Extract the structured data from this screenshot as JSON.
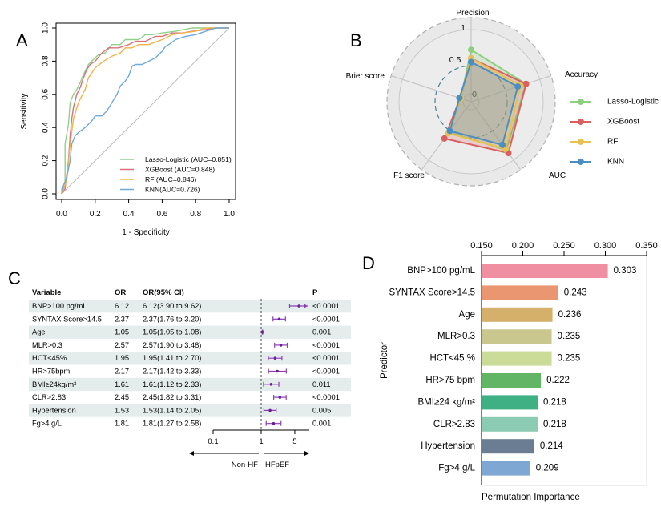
{
  "panel_labels": {
    "a": "A",
    "b": "B",
    "c": "C",
    "d": "D"
  },
  "chart_data": [
    {
      "panel": "A",
      "type": "line",
      "xlabel": "1 - Specificity",
      "ylabel": "Sensitivity",
      "xlim": [
        0,
        1
      ],
      "ylim": [
        0,
        1
      ],
      "xticks": [
        "0.0",
        "0.2",
        "0.4",
        "0.6",
        "0.8",
        "1.0"
      ],
      "yticks": [
        "0.0",
        "0.2",
        "0.4",
        "0.6",
        "0.8",
        "1.0"
      ],
      "legend_position": "bottom-right",
      "series": [
        {
          "name": "Lasso-Logistic (AUC=0.851)",
          "color": "#8fd18a",
          "x": [
            0,
            0,
            0.02,
            0.02,
            0.04,
            0.05,
            0.07,
            0.09,
            0.11,
            0.13,
            0.16,
            0.19,
            0.22,
            0.26,
            0.3,
            0.35,
            0.38,
            0.46,
            0.5,
            0.54,
            0.6,
            0.68,
            0.78,
            0.86,
            1.0
          ],
          "y": [
            0,
            0.03,
            0.05,
            0.3,
            0.42,
            0.55,
            0.6,
            0.63,
            0.67,
            0.72,
            0.78,
            0.81,
            0.84,
            0.85,
            0.9,
            0.9,
            0.93,
            0.93,
            0.96,
            0.96,
            0.97,
            0.98,
            1.0,
            1.0,
            1.0
          ]
        },
        {
          "name": "XGBoost (AUC=0.848)",
          "color": "#d9707a",
          "x": [
            0,
            0.02,
            0.04,
            0.05,
            0.06,
            0.07,
            0.09,
            0.11,
            0.13,
            0.15,
            0.17,
            0.2,
            0.24,
            0.28,
            0.34,
            0.4,
            0.44,
            0.5,
            0.56,
            0.6,
            0.66,
            0.72,
            0.78,
            0.86,
            0.92,
            1.0
          ],
          "y": [
            0,
            0.03,
            0.2,
            0.35,
            0.45,
            0.52,
            0.6,
            0.64,
            0.7,
            0.75,
            0.78,
            0.8,
            0.85,
            0.88,
            0.88,
            0.9,
            0.92,
            0.92,
            0.95,
            0.95,
            0.97,
            0.97,
            0.98,
            0.99,
            1.0,
            1.0
          ]
        },
        {
          "name": "RF (AUC=0.846)",
          "color": "#f0b44a",
          "x": [
            0,
            0.03,
            0.05,
            0.07,
            0.1,
            0.14,
            0.16,
            0.2,
            0.25,
            0.3,
            0.35,
            0.38,
            0.42,
            0.46,
            0.52,
            0.6,
            0.66,
            0.72,
            0.8,
            0.86,
            1.0
          ],
          "y": [
            0,
            0.08,
            0.3,
            0.45,
            0.55,
            0.63,
            0.7,
            0.76,
            0.8,
            0.83,
            0.85,
            0.88,
            0.88,
            0.9,
            0.9,
            0.93,
            0.96,
            0.97,
            0.98,
            1.0,
            1.0
          ]
        },
        {
          "name": "KNN(AUC=0.726)",
          "color": "#6fa9dd",
          "x": [
            0,
            0.01,
            0.03,
            0.05,
            0.06,
            0.08,
            0.1,
            0.14,
            0.18,
            0.2,
            0.24,
            0.27,
            0.3,
            0.33,
            0.35,
            0.38,
            0.4,
            0.42,
            0.44,
            0.48,
            0.52,
            0.56,
            0.58,
            0.6,
            0.62,
            0.64,
            0.68,
            0.74,
            0.8,
            0.86,
            0.92,
            1.0
          ],
          "y": [
            0,
            0.05,
            0.1,
            0.2,
            0.3,
            0.35,
            0.37,
            0.4,
            0.44,
            0.47,
            0.47,
            0.5,
            0.55,
            0.6,
            0.65,
            0.68,
            0.71,
            0.77,
            0.78,
            0.78,
            0.8,
            0.82,
            0.84,
            0.86,
            0.89,
            0.9,
            0.93,
            0.95,
            0.96,
            0.98,
            1.0,
            1.0
          ]
        }
      ]
    },
    {
      "panel": "B",
      "type": "radar",
      "axes": [
        "Precision",
        "Accuracy",
        "AUC",
        "F1 score",
        "Brier score"
      ],
      "ring_labels": [
        "0",
        "0.5",
        "1"
      ],
      "legend_position": "right",
      "series": [
        {
          "name": "Lasso-Logistic",
          "color": "#8ccf7e",
          "values": [
            0.72,
            0.8,
            0.83,
            0.52,
            0.15
          ]
        },
        {
          "name": "XGBoost",
          "color": "#d9605e",
          "values": [
            0.6,
            0.8,
            0.88,
            0.63,
            0.16
          ]
        },
        {
          "name": "RF",
          "color": "#e8c251",
          "values": [
            0.6,
            0.72,
            0.81,
            0.54,
            0.15
          ]
        },
        {
          "name": "KNN",
          "color": "#4b8ec4",
          "values": [
            0.55,
            0.68,
            0.74,
            0.5,
            0.17
          ]
        }
      ]
    },
    {
      "panel": "C",
      "type": "table",
      "columns": [
        "Variable",
        "OR",
        "OR(95% CI)",
        "P"
      ],
      "rows": [
        {
          "variable": "BNP>100 pg/mL",
          "or": "6.12",
          "ci": "6.12(3.90 to 9.62)",
          "p": "<0.0001",
          "or_value": 6.12,
          "lower": 3.9,
          "upper": 9.62
        },
        {
          "variable": "SYNTAX Score>14.5",
          "or": "2.37",
          "ci": "2.37(1.76 to 3.20)",
          "p": "<0.0001",
          "or_value": 2.37,
          "lower": 1.76,
          "upper": 3.2
        },
        {
          "variable": "Age",
          "or": "1.05",
          "ci": "1.05(1.05 to 1.08)",
          "p": "0.001",
          "or_value": 1.05,
          "lower": 1.05,
          "upper": 1.08
        },
        {
          "variable": "MLR>0.3",
          "or": "2.57",
          "ci": "2.57(1.90 to 3.48)",
          "p": "<0.0001",
          "or_value": 2.57,
          "lower": 1.9,
          "upper": 3.48
        },
        {
          "variable": "HCT<45%",
          "or": "1.95",
          "ci": "1.95(1.41 to 2.70)",
          "p": "<0.0001",
          "or_value": 1.95,
          "lower": 1.41,
          "upper": 2.7
        },
        {
          "variable": "HR>75bpm",
          "or": "2.17",
          "ci": "2.17(1.42 to 3.33)",
          "p": "<0.0001",
          "or_value": 2.17,
          "lower": 1.42,
          "upper": 3.33
        },
        {
          "variable": "BMI≥24kg/m²",
          "or": "1.61",
          "ci": "1.61(1.12 to 2.33)",
          "p": "0.011",
          "or_value": 1.61,
          "lower": 1.12,
          "upper": 2.33
        },
        {
          "variable": "CLR>2.83",
          "or": "2.45",
          "ci": "2.45(1.82 to 3.31)",
          "p": "<0.0001",
          "or_value": 2.45,
          "lower": 1.82,
          "upper": 3.31
        },
        {
          "variable": "Hypertension",
          "or": "1.53",
          "ci": "1.53(1.14 to 2.05)",
          "p": "0.005",
          "or_value": 1.53,
          "lower": 1.14,
          "upper": 2.05
        },
        {
          "variable": "Fg>4 g/L",
          "or": "1.81",
          "ci": "1.81(1.27 to 2.58)",
          "p": "0.001",
          "or_value": 1.81,
          "lower": 1.27,
          "upper": 2.58
        }
      ],
      "xticks": [
        "0.1",
        "1",
        "5"
      ],
      "direction_left": "Non-HF",
      "direction_right": "HFpEF"
    },
    {
      "panel": "D",
      "type": "bar",
      "orientation": "horizontal",
      "ylabel": "Predictor",
      "xlabel": "Permutation Importance",
      "xlim": [
        0.15,
        0.35
      ],
      "xticks": [
        "0.150",
        "0.200",
        "0.250",
        "0.300",
        "0.350"
      ],
      "categories": [
        "BNP>100 pg/mL",
        "SYNTAX Score>14.5",
        "Age",
        "MLR>0.3",
        "HCT<45 %",
        "HR>75 bpm",
        "BMI≥24 kg/m²",
        "CLR>2.83",
        "Hypertension",
        "Fg>4 g/L"
      ],
      "values": [
        0.303,
        0.243,
        0.236,
        0.235,
        0.235,
        0.222,
        0.218,
        0.218,
        0.214,
        0.209
      ],
      "value_labels": [
        "0.303",
        "0.243",
        "0.236",
        "0.235",
        "0.235",
        "0.222",
        "0.218",
        "0.218",
        "0.214",
        "0.209"
      ],
      "colors": [
        "#f08fa1",
        "#ea9670",
        "#d4b06a",
        "#c9c68e",
        "#cbdc98",
        "#62b565",
        "#3fb084",
        "#8ccbb3",
        "#6a7d92",
        "#7fa7d3"
      ]
    }
  ]
}
